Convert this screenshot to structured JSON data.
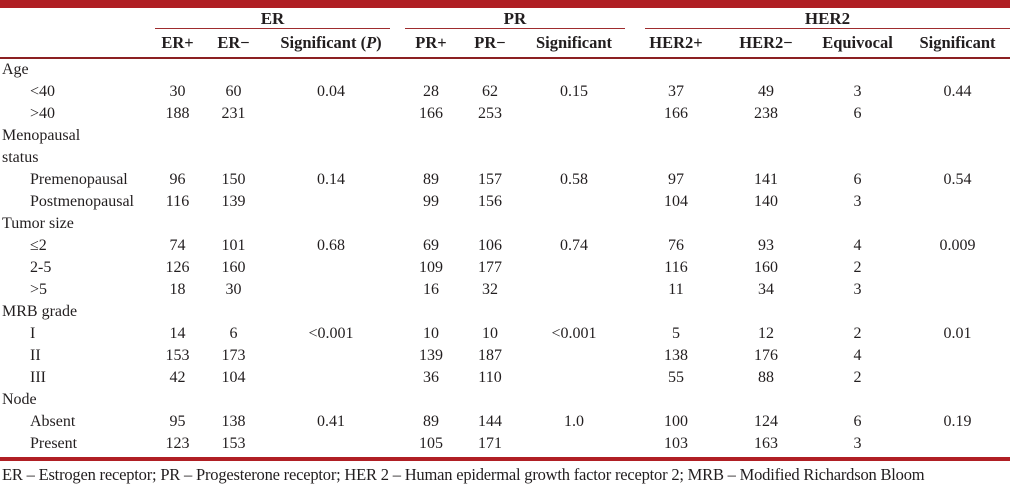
{
  "colors": {
    "accent_red": "#b01f24",
    "rule_red": "#9e2c2e",
    "header_rule": "#8c2022",
    "text": "#221e1f"
  },
  "header": {
    "er_group": "ER",
    "pr_group": "PR",
    "her2_group": "HER2",
    "er_pos": "ER+",
    "er_neg": "ER−",
    "er_sig_prefix": "Significant (",
    "er_sig_p": "P",
    "er_sig_suffix": ")",
    "pr_pos": "PR+",
    "pr_neg": "PR−",
    "pr_sig": "Significant",
    "her2_pos": "HER2+",
    "her2_neg": "HER2−",
    "her2_equivocal": "Equivocal",
    "her2_sig": "Significant"
  },
  "table": {
    "column_keys": [
      "er_pos",
      "er_neg",
      "er_sig",
      "pr_pos",
      "pr_neg",
      "pr_sig",
      "her2_pos",
      "her2_neg",
      "equivocal",
      "her2_sig"
    ],
    "rows": [
      {
        "type": "group",
        "label": "Age",
        "values": []
      },
      {
        "type": "sub",
        "label": "<40",
        "values": [
          "30",
          "60",
          "0.04",
          "28",
          "62",
          "0.15",
          "37",
          "49",
          "3",
          "0.44"
        ]
      },
      {
        "type": "sub",
        "label": ">40",
        "values": [
          "188",
          "231",
          "",
          "166",
          "253",
          "",
          "166",
          "238",
          "6",
          ""
        ]
      },
      {
        "type": "group",
        "label": "Menopausal\nstatus",
        "values": []
      },
      {
        "type": "sub",
        "label": "Premenopausal",
        "values": [
          "96",
          "150",
          "0.14",
          "89",
          "157",
          "0.58",
          "97",
          "141",
          "6",
          "0.54"
        ]
      },
      {
        "type": "sub",
        "label": "Postmenopausal",
        "values": [
          "116",
          "139",
          "",
          "99",
          "156",
          "",
          "104",
          "140",
          "3",
          ""
        ]
      },
      {
        "type": "group",
        "label": "Tumor size",
        "values": []
      },
      {
        "type": "sub",
        "label": "≤2",
        "values": [
          "74",
          "101",
          "0.68",
          "69",
          "106",
          "0.74",
          "76",
          "93",
          "4",
          "0.009"
        ]
      },
      {
        "type": "sub",
        "label": "2-5",
        "values": [
          "126",
          "160",
          "",
          "109",
          "177",
          "",
          "116",
          "160",
          "2",
          ""
        ]
      },
      {
        "type": "sub",
        "label": ">5",
        "values": [
          "18",
          "30",
          "",
          "16",
          "32",
          "",
          "11",
          "34",
          "3",
          ""
        ]
      },
      {
        "type": "group",
        "label": "MRB grade",
        "values": []
      },
      {
        "type": "sub",
        "label": "I",
        "values": [
          "14",
          "6",
          "<0.001",
          "10",
          "10",
          "<0.001",
          "5",
          "12",
          "2",
          "0.01"
        ]
      },
      {
        "type": "sub",
        "label": "II",
        "values": [
          "153",
          "173",
          "",
          "139",
          "187",
          "",
          "138",
          "176",
          "4",
          ""
        ]
      },
      {
        "type": "sub",
        "label": "III",
        "values": [
          "42",
          "104",
          "",
          "36",
          "110",
          "",
          "55",
          "88",
          "2",
          ""
        ]
      },
      {
        "type": "group",
        "label": "Node",
        "values": []
      },
      {
        "type": "sub",
        "label": "Absent",
        "values": [
          "95",
          "138",
          "0.41",
          "89",
          "144",
          "1.0",
          "100",
          "124",
          "6",
          "0.19"
        ]
      },
      {
        "type": "sub",
        "label": "Present",
        "values": [
          "123",
          "153",
          "",
          "105",
          "171",
          "",
          "103",
          "163",
          "3",
          ""
        ]
      }
    ]
  },
  "footnote": "ER – Estrogen receptor; PR – Progesterone receptor; HER 2 – Human epidermal growth factor receptor 2; MRB – Modified Richardson Bloom"
}
